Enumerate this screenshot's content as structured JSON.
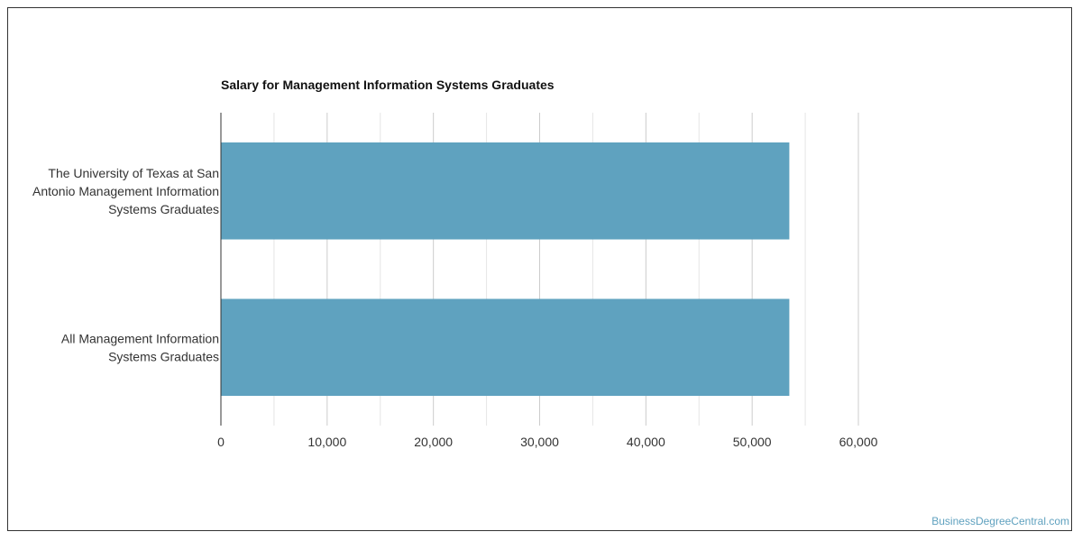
{
  "chart_data": {
    "type": "bar",
    "orientation": "horizontal",
    "title": "Salary for Management Information Systems Graduates",
    "categories": [
      [
        "The University of Texas at San",
        "Antonio Management Information",
        "Systems Graduates"
      ],
      [
        "All Management Information",
        "Systems Graduates"
      ]
    ],
    "values": [
      53500,
      53500
    ],
    "xlim": [
      0,
      60000
    ],
    "xticks": [
      0,
      10000,
      20000,
      30000,
      40000,
      50000,
      60000
    ],
    "xtick_labels": [
      "0",
      "10,000",
      "20,000",
      "30,000",
      "40,000",
      "50,000",
      "60,000"
    ],
    "grid": true,
    "bar_color": "#5fa2bf"
  },
  "watermark": "BusinessDegreeCentral.com"
}
